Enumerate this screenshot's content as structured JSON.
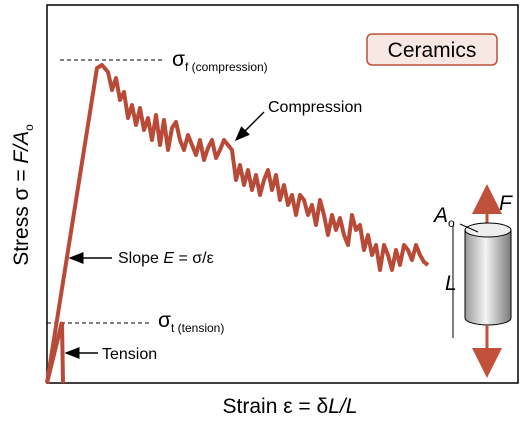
{
  "badge": "Ceramics",
  "y_axis": {
    "prefix": "Stress  σ = ",
    "var": "F/A",
    "sub": "o"
  },
  "x_axis": {
    "prefix": "Strain ε = δ",
    "var": "L/L"
  },
  "sigma_f": {
    "symbol": "σ",
    "sub": "f (compression)"
  },
  "sigma_t": {
    "symbol": "σ",
    "sub": "t (tension)"
  },
  "compression": "Compression",
  "slope": {
    "prefix": "Slope  ",
    "var": "E",
    "rest": " = σ/ε"
  },
  "tension": "Tension",
  "specimen": {
    "area": "A",
    "area_sub": "o",
    "force": "F",
    "length": "L"
  }
}
